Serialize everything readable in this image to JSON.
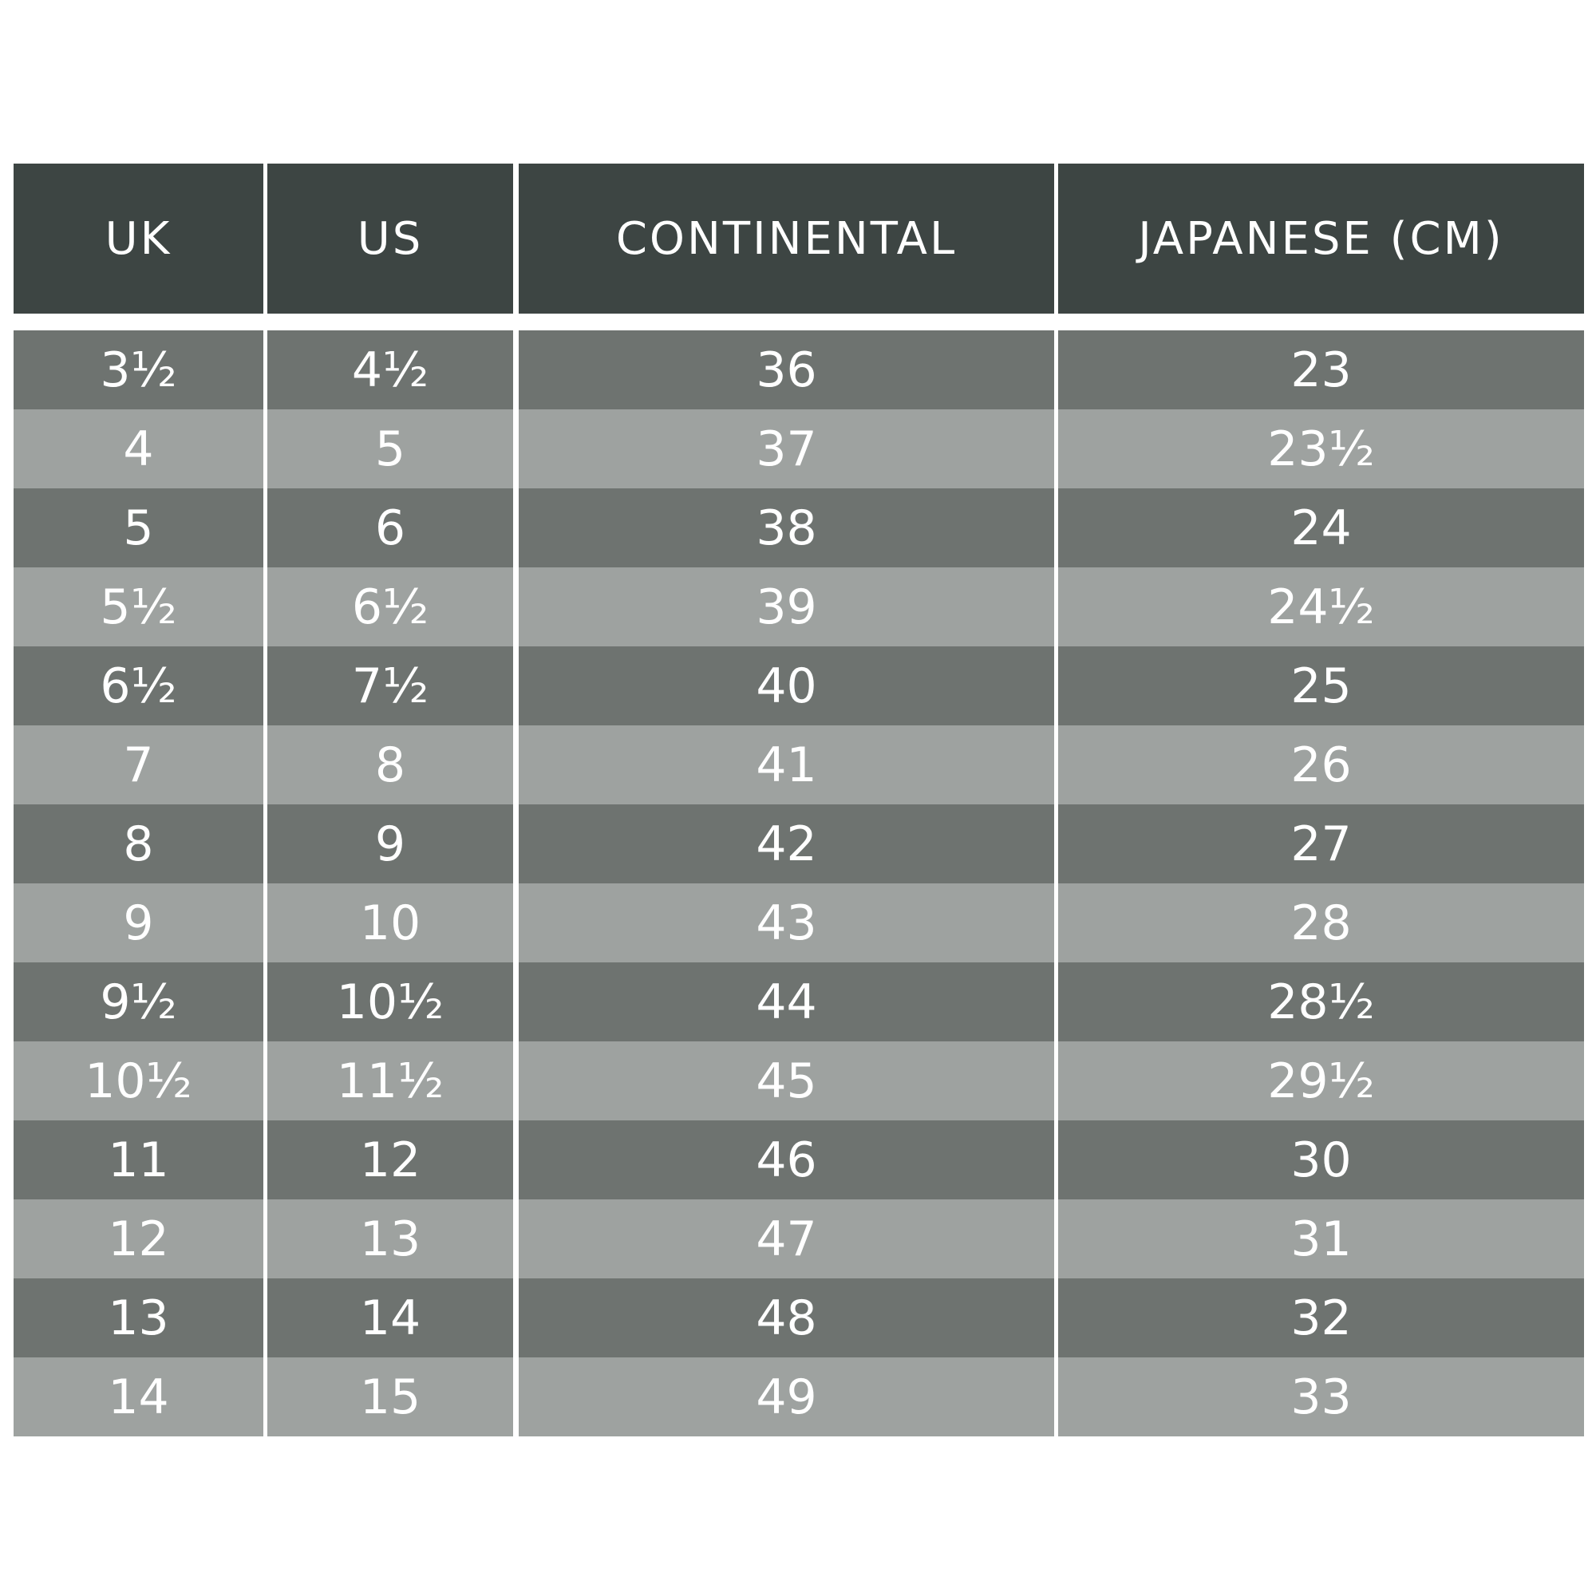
{
  "table": {
    "header": [
      "UK",
      "US",
      "CONTINENTAL",
      "JAPANESE (CM)"
    ],
    "rows": [
      [
        "3½",
        "4½",
        "36",
        "23"
      ],
      [
        "4",
        "5",
        "37",
        "23½"
      ],
      [
        "5",
        "6",
        "38",
        "24"
      ],
      [
        "5½",
        "6½",
        "39",
        "24½"
      ],
      [
        "6½",
        "7½",
        "40",
        "25"
      ],
      [
        "7",
        "8",
        "41",
        "26"
      ],
      [
        "8",
        "9",
        "42",
        "27"
      ],
      [
        "9",
        "10",
        "43",
        "28"
      ],
      [
        "9½",
        "10½",
        "44",
        "28½"
      ],
      [
        "10½",
        "11½",
        "45",
        "29½"
      ],
      [
        "11",
        "12",
        "46",
        "30"
      ],
      [
        "12",
        "13",
        "47",
        "31"
      ],
      [
        "13",
        "14",
        "48",
        "32"
      ],
      [
        "14",
        "15",
        "49",
        "33"
      ]
    ]
  }
}
